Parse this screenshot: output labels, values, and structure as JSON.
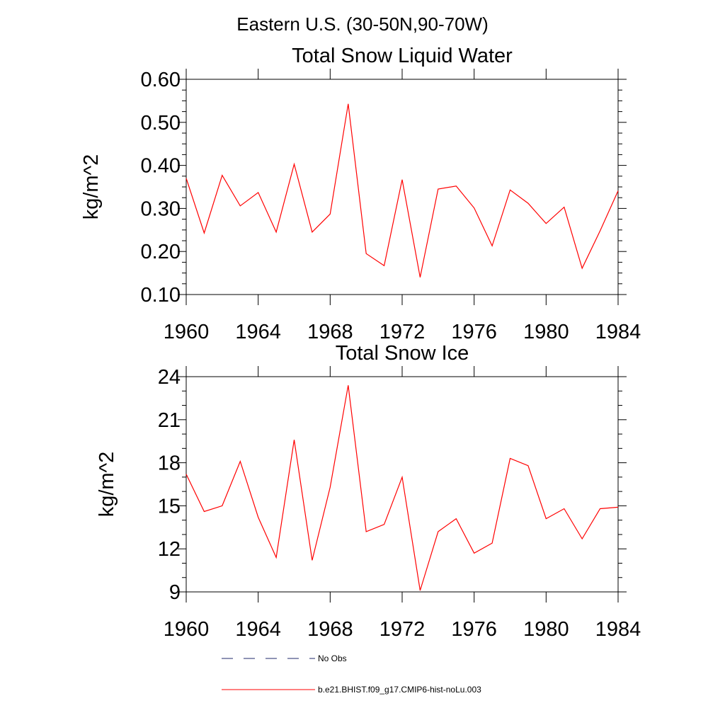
{
  "figure": {
    "main_title": "Eastern U.S. (30-50N,90-70W)"
  },
  "chart_data": [
    {
      "type": "line",
      "title": "Total Snow Liquid Water",
      "xlabel": "",
      "ylabel": "kg/m^2",
      "xlim": [
        1960,
        1984
      ],
      "ylim": [
        0.1,
        0.6
      ],
      "x_ticks": [
        1960,
        1964,
        1968,
        1972,
        1976,
        1980,
        1984
      ],
      "x_tick_labels": [
        "1960",
        "1964",
        "1968",
        "1972",
        "1976",
        "1980",
        "1984"
      ],
      "y_ticks": [
        0.1,
        0.2,
        0.3,
        0.4,
        0.5,
        0.6
      ],
      "y_tick_labels": [
        "0.10",
        "0.20",
        "0.30",
        "0.40",
        "0.50",
        "0.60"
      ],
      "grid": false,
      "x": [
        1960,
        1961,
        1962,
        1963,
        1964,
        1965,
        1966,
        1967,
        1968,
        1969,
        1970,
        1971,
        1972,
        1973,
        1974,
        1975,
        1976,
        1977,
        1978,
        1979,
        1980,
        1981,
        1982,
        1983,
        1984
      ],
      "series": [
        {
          "name": "b.e21.BHIST.f09_g17.CMIP6-hist-noLu.003",
          "color": "#ff0000",
          "values": [
            0.37,
            0.243,
            0.377,
            0.306,
            0.337,
            0.245,
            0.403,
            0.245,
            0.287,
            0.543,
            0.195,
            0.167,
            0.367,
            0.14,
            0.345,
            0.352,
            0.301,
            0.213,
            0.343,
            0.312,
            0.265,
            0.303,
            0.161,
            0.248,
            0.341
          ]
        }
      ]
    },
    {
      "type": "line",
      "title": "Total Snow Ice",
      "xlabel": "",
      "ylabel": "kg/m^2",
      "xlim": [
        1960,
        1984
      ],
      "ylim": [
        9,
        24
      ],
      "x_ticks": [
        1960,
        1964,
        1968,
        1972,
        1976,
        1980,
        1984
      ],
      "x_tick_labels": [
        "1960",
        "1964",
        "1968",
        "1972",
        "1976",
        "1980",
        "1984"
      ],
      "y_ticks": [
        9,
        12,
        15,
        18,
        21,
        24
      ],
      "y_tick_labels": [
        "9",
        "12",
        "15",
        "18",
        "21",
        "24"
      ],
      "grid": false,
      "x": [
        1960,
        1961,
        1962,
        1963,
        1964,
        1965,
        1966,
        1967,
        1968,
        1969,
        1970,
        1971,
        1972,
        1973,
        1974,
        1975,
        1976,
        1977,
        1978,
        1979,
        1980,
        1981,
        1982,
        1983,
        1984
      ],
      "series": [
        {
          "name": "b.e21.BHIST.f09_g17.CMIP6-hist-noLu.003",
          "color": "#ff0000",
          "values": [
            17.2,
            14.6,
            15.0,
            18.1,
            14.2,
            11.4,
            19.6,
            11.2,
            16.3,
            23.4,
            13.2,
            13.7,
            17.0,
            9.1,
            13.2,
            14.1,
            11.7,
            12.4,
            18.3,
            17.8,
            14.1,
            14.8,
            12.7,
            14.8,
            14.9
          ]
        }
      ]
    }
  ],
  "legend": {
    "placement": "bottom",
    "entries": [
      {
        "label": "No Obs",
        "style": "dashed",
        "color": "#1f2a6b"
      },
      {
        "label": "b.e21.BHIST.f09_g17.CMIP6-hist-noLu.003",
        "style": "solid",
        "color": "#ff0000"
      }
    ]
  }
}
